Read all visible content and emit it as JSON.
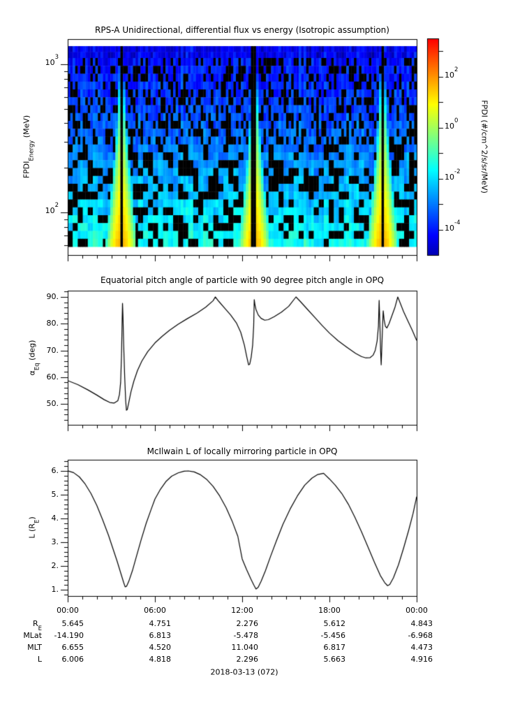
{
  "chart_data": [
    {
      "type": "heatmap",
      "title": "RPS-A Unidirectional, differential flux vs energy (Isotropic assumption)",
      "ylabel": [
        {
          "t": "FPDI"
        },
        {
          "t": "Energy",
          "sub": true
        },
        {
          "t": " (MeV)"
        }
      ],
      "yscale": "log",
      "ylim_mev": [
        52,
        1480
      ],
      "data_energy_range_mev": [
        59,
        1310
      ],
      "yticks": [
        {
          "value": 1000,
          "segs": [
            {
              "t": "10"
            },
            {
              "t": "3",
              "sup": true
            }
          ]
        },
        {
          "value": 100,
          "segs": [
            {
              "t": "10"
            },
            {
              "t": "2",
              "sup": true
            }
          ]
        }
      ],
      "y_minor_values": [
        60,
        70,
        80,
        90,
        200,
        300,
        400,
        500,
        600,
        700,
        800,
        900
      ],
      "colorbar": {
        "label": [
          {
            "t": "FPDI (#/cm^2/s/sr/MeV)"
          }
        ],
        "ticks": [
          {
            "log10": 2,
            "segs": [
              {
                "t": "10"
              },
              {
                "t": "2",
                "sup": true
              }
            ]
          },
          {
            "log10": 0,
            "segs": [
              {
                "t": "10"
              },
              {
                "t": "0",
                "sup": true
              }
            ]
          },
          {
            "log10": -2,
            "segs": [
              {
                "t": "10"
              },
              {
                "t": "-2",
                "sup": true
              }
            ]
          },
          {
            "log10": -4,
            "segs": [
              {
                "t": "10"
              },
              {
                "t": "-4",
                "sup": true
              }
            ]
          }
        ],
        "minor_log10": [
          3,
          1,
          -1,
          -3
        ],
        "range_log10": [
          -5,
          3.5
        ],
        "colormap": "jet"
      },
      "background_logflux_profile": {
        "top_energy": -4.1,
        "mid_energy": -2.9,
        "low_energy": -1.5,
        "dropout_fraction": 0.33
      },
      "enhancements": [
        {
          "center_hour": 3.7,
          "peak_logflux_bottom": 1.6,
          "tip_logflux": -1.4,
          "sigma_bottom_hours": 0.66,
          "sigma_top_hours": 0.1
        },
        {
          "center_hour": 12.85,
          "peak_logflux_bottom": 1.6,
          "tip_logflux": -1.4,
          "sigma_bottom_hours": 0.7,
          "sigma_top_hours": 0.1
        },
        {
          "center_hour": 21.66,
          "peak_logflux_bottom": 1.6,
          "tip_logflux": -1.4,
          "sigma_bottom_hours": 0.62,
          "sigma_top_hours": 0.1
        }
      ],
      "data_gap_hours": [
        {
          "center": 3.7,
          "half_width": 0.1
        },
        {
          "center": 12.85,
          "half_width": 0.18
        },
        {
          "center": 21.66,
          "half_width": 0.1
        }
      ]
    },
    {
      "type": "line",
      "title": "Equatorial pitch angle of particle with 90 degree pitch angle in OPQ",
      "ylabel": [
        {
          "t": "α"
        },
        {
          "t": "Eq",
          "sub": true
        },
        {
          "t": " (deg)"
        }
      ],
      "ylim": [
        42.2,
        92.35
      ],
      "yticks": [
        {
          "value": 90,
          "label": "90."
        },
        {
          "value": 80,
          "label": "80."
        },
        {
          "value": 70,
          "label": "70."
        },
        {
          "value": 60,
          "label": "60."
        },
        {
          "value": 50,
          "label": "50."
        }
      ],
      "y_minor_step": 2,
      "series": {
        "name": "alpha_eq_deg",
        "points": [
          [
            0,
            58.7
          ],
          [
            0.7,
            57.2
          ],
          [
            1.4,
            55.2
          ],
          [
            2.0,
            53.3
          ],
          [
            2.5,
            51.6
          ],
          [
            2.9,
            50.5
          ],
          [
            3.2,
            50.3
          ],
          [
            3.45,
            51.2
          ],
          [
            3.56,
            53.5
          ],
          [
            3.64,
            58
          ],
          [
            3.7,
            68
          ],
          [
            3.74,
            80
          ],
          [
            3.77,
            87.6
          ],
          [
            3.8,
            83
          ],
          [
            3.85,
            72
          ],
          [
            3.92,
            60
          ],
          [
            3.99,
            51
          ],
          [
            4.04,
            47.6
          ],
          [
            4.1,
            47.9
          ],
          [
            4.2,
            50.5
          ],
          [
            4.35,
            54.5
          ],
          [
            4.55,
            58.5
          ],
          [
            4.8,
            62.5
          ],
          [
            5.1,
            66
          ],
          [
            5.5,
            69.5
          ],
          [
            6.0,
            72.8
          ],
          [
            6.5,
            75.3
          ],
          [
            7.0,
            77.5
          ],
          [
            7.6,
            79.8
          ],
          [
            8.2,
            81.8
          ],
          [
            8.9,
            84
          ],
          [
            9.5,
            86.2
          ],
          [
            10.0,
            88.6
          ],
          [
            10.15,
            90
          ],
          [
            10.4,
            88.3
          ],
          [
            10.8,
            85.8
          ],
          [
            11.2,
            83.3
          ],
          [
            11.6,
            80.3
          ],
          [
            11.9,
            76.8
          ],
          [
            12.15,
            72
          ],
          [
            12.32,
            67.5
          ],
          [
            12.44,
            64.6
          ],
          [
            12.52,
            64.9
          ],
          [
            12.62,
            67.5
          ],
          [
            12.72,
            72
          ],
          [
            12.79,
            79
          ],
          [
            12.83,
            89
          ],
          [
            12.88,
            87
          ],
          [
            12.95,
            85.3
          ],
          [
            13.1,
            83.3
          ],
          [
            13.3,
            82
          ],
          [
            13.55,
            81.3
          ],
          [
            13.8,
            81.5
          ],
          [
            14.2,
            82.6
          ],
          [
            14.7,
            84.3
          ],
          [
            15.2,
            86.5
          ],
          [
            15.7,
            90
          ],
          [
            16.0,
            88.3
          ],
          [
            16.5,
            85.3
          ],
          [
            17.0,
            82.3
          ],
          [
            17.5,
            79.3
          ],
          [
            18.0,
            76.5
          ],
          [
            18.6,
            73.6
          ],
          [
            19.2,
            71.2
          ],
          [
            19.8,
            68.9
          ],
          [
            20.2,
            67.7
          ],
          [
            20.5,
            67.2
          ],
          [
            20.8,
            67.3
          ],
          [
            21.0,
            68.2
          ],
          [
            21.15,
            70
          ],
          [
            21.28,
            73.5
          ],
          [
            21.37,
            79
          ],
          [
            21.42,
            88.7
          ],
          [
            21.47,
            80
          ],
          [
            21.52,
            70
          ],
          [
            21.56,
            64.6
          ],
          [
            21.61,
            72
          ],
          [
            21.66,
            80
          ],
          [
            21.7,
            84.8
          ],
          [
            21.76,
            81.5
          ],
          [
            21.85,
            79
          ],
          [
            21.95,
            78.4
          ],
          [
            22.1,
            80
          ],
          [
            22.3,
            83
          ],
          [
            22.5,
            86
          ],
          [
            22.7,
            90
          ],
          [
            22.85,
            88
          ],
          [
            23.1,
            84.5
          ],
          [
            23.4,
            81
          ],
          [
            23.7,
            77.5
          ],
          [
            24,
            73.7
          ]
        ]
      }
    },
    {
      "type": "line",
      "title": "McIlwain L of locally mirroring particle in OPQ",
      "ylabel": [
        {
          "t": "L (R"
        },
        {
          "t": "E",
          "sub": true
        },
        {
          "t": ")"
        }
      ],
      "ylim": [
        0.74,
        6.47
      ],
      "yticks": [
        {
          "value": 6,
          "label": "6."
        },
        {
          "value": 5,
          "label": "5."
        },
        {
          "value": 4,
          "label": "4."
        },
        {
          "value": 3,
          "label": "3."
        },
        {
          "value": 2,
          "label": "2."
        },
        {
          "value": 1,
          "label": "1."
        }
      ],
      "y_minor_step": 0.2,
      "series": {
        "name": "mcilwain_L_Re",
        "points": [
          [
            0,
            6.006
          ],
          [
            0.4,
            5.93
          ],
          [
            0.8,
            5.75
          ],
          [
            1.2,
            5.45
          ],
          [
            1.6,
            5.05
          ],
          [
            2.0,
            4.55
          ],
          [
            2.4,
            3.95
          ],
          [
            2.8,
            3.3
          ],
          [
            3.1,
            2.75
          ],
          [
            3.4,
            2.2
          ],
          [
            3.65,
            1.7
          ],
          [
            3.85,
            1.3
          ],
          [
            3.95,
            1.12
          ],
          [
            4.05,
            1.15
          ],
          [
            4.2,
            1.35
          ],
          [
            4.45,
            1.8
          ],
          [
            4.75,
            2.45
          ],
          [
            5.05,
            3.1
          ],
          [
            5.4,
            3.8
          ],
          [
            5.75,
            4.4
          ],
          [
            6.0,
            4.818
          ],
          [
            6.35,
            5.2
          ],
          [
            6.75,
            5.55
          ],
          [
            7.15,
            5.78
          ],
          [
            7.6,
            5.92
          ],
          [
            8.0,
            5.99
          ],
          [
            8.3,
            6.0
          ],
          [
            8.7,
            5.96
          ],
          [
            9.1,
            5.85
          ],
          [
            9.55,
            5.65
          ],
          [
            10.0,
            5.35
          ],
          [
            10.45,
            4.95
          ],
          [
            10.9,
            4.45
          ],
          [
            11.3,
            3.9
          ],
          [
            11.7,
            3.25
          ],
          [
            12.0,
            2.296
          ],
          [
            12.3,
            1.85
          ],
          [
            12.6,
            1.45
          ],
          [
            12.8,
            1.2
          ],
          [
            12.95,
            1.03
          ],
          [
            13.1,
            1.1
          ],
          [
            13.3,
            1.35
          ],
          [
            13.6,
            1.8
          ],
          [
            13.95,
            2.4
          ],
          [
            14.35,
            3.05
          ],
          [
            14.8,
            3.75
          ],
          [
            15.3,
            4.4
          ],
          [
            15.8,
            4.95
          ],
          [
            16.3,
            5.4
          ],
          [
            16.8,
            5.7
          ],
          [
            17.2,
            5.85
          ],
          [
            17.6,
            5.9
          ],
          [
            18.0,
            5.663
          ],
          [
            18.4,
            5.4
          ],
          [
            18.85,
            5.05
          ],
          [
            19.3,
            4.6
          ],
          [
            19.75,
            4.05
          ],
          [
            20.2,
            3.45
          ],
          [
            20.65,
            2.8
          ],
          [
            21.1,
            2.15
          ],
          [
            21.5,
            1.6
          ],
          [
            21.8,
            1.3
          ],
          [
            22.0,
            1.17
          ],
          [
            22.15,
            1.22
          ],
          [
            22.4,
            1.5
          ],
          [
            22.75,
            2.05
          ],
          [
            23.1,
            2.75
          ],
          [
            23.45,
            3.5
          ],
          [
            23.75,
            4.2
          ],
          [
            24,
            4.916
          ]
        ]
      }
    }
  ],
  "time_axis": {
    "range_hours": [
      0,
      24
    ],
    "minor_step_hours": 1,
    "major": [
      {
        "hour": 0,
        "label": "00:00"
      },
      {
        "hour": 6,
        "label": "06:00"
      },
      {
        "hour": 12,
        "label": "12:00"
      },
      {
        "hour": 18,
        "label": "18:00"
      },
      {
        "hour": 24,
        "label": "00:00"
      }
    ]
  },
  "ephemeris": {
    "column_hours": [
      0,
      6,
      12,
      18,
      24
    ],
    "rows": [
      {
        "label": [
          {
            "t": "R"
          },
          {
            "t": "E",
            "sub": true
          }
        ],
        "values": [
          "5.645",
          "4.751",
          "2.276",
          "5.612",
          "4.843"
        ]
      },
      {
        "label": [
          {
            "t": "MLat"
          }
        ],
        "values": [
          "-14.190",
          "6.813",
          "-5.478",
          "-5.456",
          "-6.968"
        ]
      },
      {
        "label": [
          {
            "t": "MLT"
          }
        ],
        "values": [
          "6.655",
          "4.520",
          "11.040",
          "6.817",
          "4.473"
        ]
      },
      {
        "label": [
          {
            "t": "L"
          }
        ],
        "values": [
          "6.006",
          "4.818",
          "2.296",
          "5.663",
          "4.916"
        ]
      }
    ],
    "date": "2018-03-13 (072)"
  }
}
